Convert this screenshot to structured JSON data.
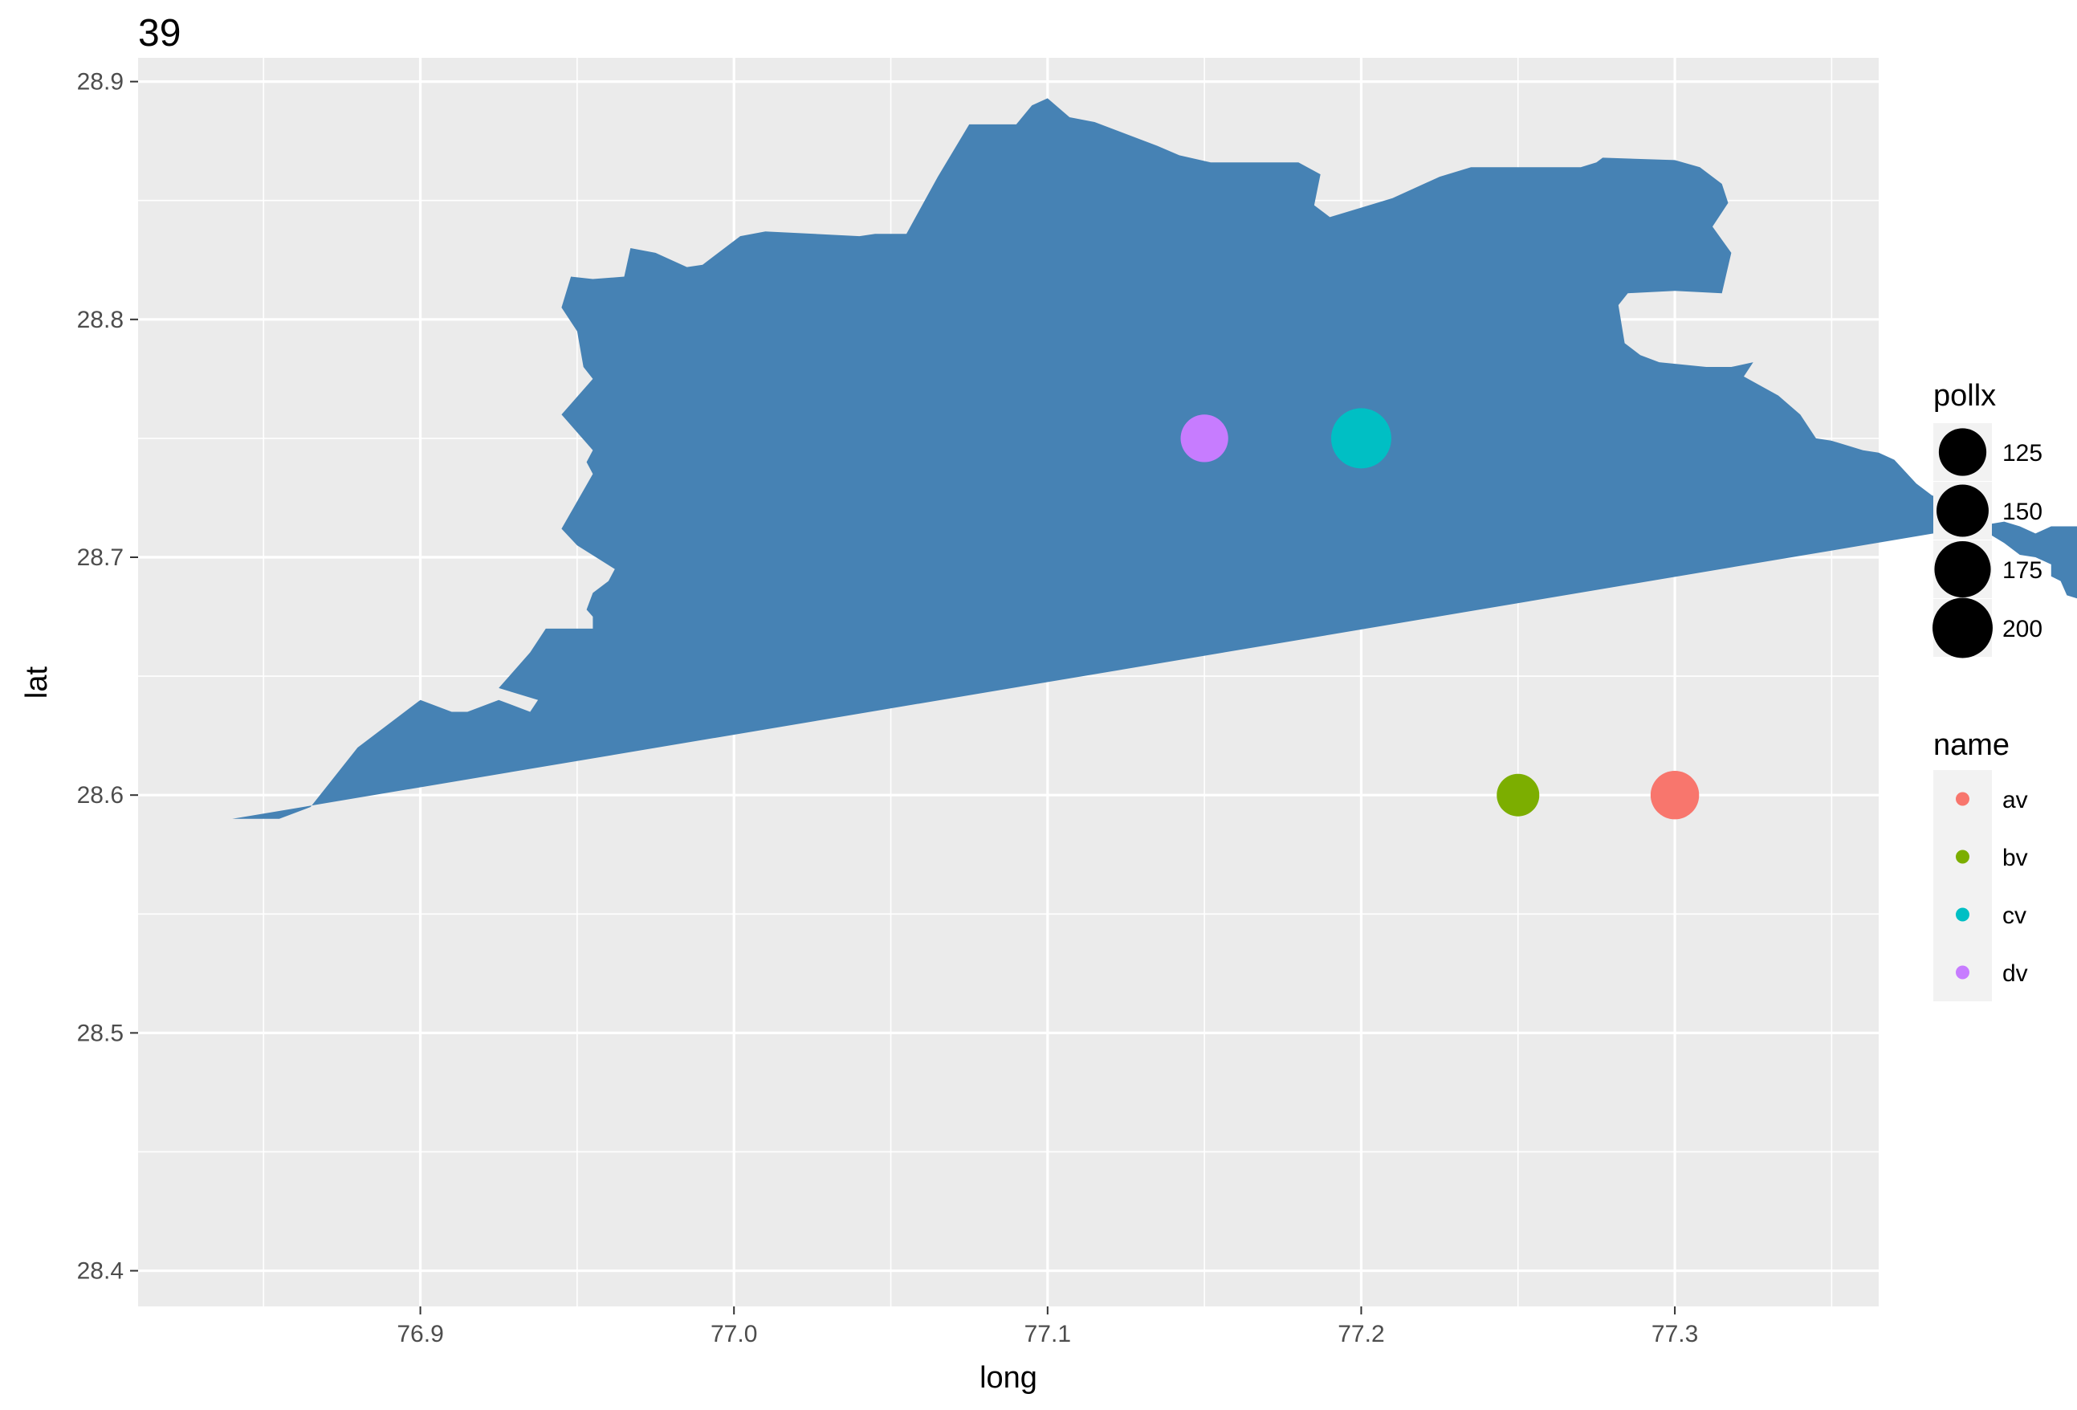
{
  "title": "39",
  "chart_data": {
    "type": "scatter",
    "title": "39",
    "xlabel": "long",
    "ylabel": "lat",
    "xlim": [
      76.81,
      77.365
    ],
    "ylim": [
      28.385,
      28.91
    ],
    "x_ticks": [
      76.9,
      77.0,
      77.1,
      77.2,
      77.3
    ],
    "x_tick_labels": [
      "76.9",
      "77.0",
      "77.1",
      "77.2",
      "77.3"
    ],
    "y_ticks": [
      28.4,
      28.5,
      28.6,
      28.7,
      28.8,
      28.9
    ],
    "y_tick_labels": [
      "28.4",
      "28.5",
      "28.6",
      "28.7",
      "28.8",
      "28.9"
    ],
    "grid": true,
    "region_fill": "#4682b4",
    "panel_background": "#ebebeb",
    "region_outline": [
      [
        76.84,
        28.59
      ],
      [
        76.855,
        28.59
      ],
      [
        76.865,
        28.595
      ],
      [
        76.88,
        28.62
      ],
      [
        76.9,
        28.64
      ],
      [
        76.91,
        28.635
      ],
      [
        76.915,
        28.635
      ],
      [
        76.925,
        28.64
      ],
      [
        76.935,
        28.635
      ],
      [
        76.9375,
        28.64
      ],
      [
        76.925,
        28.645
      ],
      [
        76.935,
        28.66
      ],
      [
        76.94,
        28.67
      ],
      [
        76.95,
        28.67
      ],
      [
        76.955,
        28.67
      ],
      [
        76.955,
        28.675
      ],
      [
        76.953,
        28.678
      ],
      [
        76.955,
        28.685
      ],
      [
        76.96,
        28.69
      ],
      [
        76.962,
        28.695
      ],
      [
        76.95,
        28.705
      ],
      [
        76.945,
        28.712
      ],
      [
        76.955,
        28.735
      ],
      [
        76.953,
        28.74
      ],
      [
        76.955,
        28.745
      ],
      [
        76.945,
        28.76
      ],
      [
        76.955,
        28.775
      ],
      [
        76.952,
        28.78
      ],
      [
        76.95,
        28.795
      ],
      [
        76.945,
        28.805
      ],
      [
        76.948,
        28.818
      ],
      [
        76.955,
        28.817
      ],
      [
        76.965,
        28.818
      ],
      [
        76.967,
        28.83
      ],
      [
        76.975,
        28.828
      ],
      [
        76.985,
        28.822
      ],
      [
        76.99,
        28.823
      ],
      [
        77.002,
        28.835
      ],
      [
        77.01,
        28.837
      ],
      [
        77.04,
        28.835
      ],
      [
        77.045,
        28.836
      ],
      [
        77.055,
        28.836
      ],
      [
        77.065,
        28.86
      ],
      [
        77.075,
        28.882
      ],
      [
        77.09,
        28.882
      ],
      [
        77.095,
        28.89
      ],
      [
        77.1,
        28.893
      ],
      [
        77.107,
        28.885
      ],
      [
        77.115,
        28.883
      ],
      [
        77.135,
        28.873
      ],
      [
        77.142,
        28.869
      ],
      [
        77.152,
        28.866
      ],
      [
        77.18,
        28.866
      ],
      [
        77.187,
        28.861
      ],
      [
        77.185,
        28.848
      ],
      [
        77.19,
        28.843
      ],
      [
        77.195,
        28.845
      ],
      [
        77.21,
        28.851
      ],
      [
        77.225,
        28.86
      ],
      [
        77.235,
        28.864
      ],
      [
        77.27,
        28.864
      ],
      [
        77.275,
        28.866
      ],
      [
        77.277,
        28.868
      ],
      [
        77.3,
        28.867
      ],
      [
        77.308,
        28.864
      ],
      [
        77.315,
        28.857
      ],
      [
        77.317,
        28.849
      ],
      [
        77.312,
        28.839
      ],
      [
        77.318,
        28.828
      ],
      [
        77.315,
        28.811
      ],
      [
        77.3,
        28.812
      ],
      [
        77.285,
        28.811
      ],
      [
        77.282,
        28.806
      ],
      [
        77.284,
        28.79
      ],
      [
        77.289,
        28.785
      ],
      [
        77.295,
        28.782
      ],
      [
        77.31,
        28.78
      ],
      [
        77.318,
        28.78
      ],
      [
        77.325,
        28.782
      ],
      [
        77.322,
        28.776
      ],
      [
        77.333,
        28.768
      ],
      [
        77.34,
        28.76
      ],
      [
        77.345,
        28.75
      ],
      [
        77.35,
        28.749
      ],
      [
        77.36,
        28.745
      ],
      [
        77.365,
        28.744
      ],
      [
        77.37,
        28.741
      ],
      [
        77.377,
        28.731
      ],
      [
        77.382,
        28.726
      ],
      [
        77.39,
        28.723
      ],
      [
        77.395,
        28.716
      ],
      [
        77.4,
        28.71
      ],
      [
        77.405,
        28.706
      ],
      [
        77.41,
        28.701
      ],
      [
        77.415,
        28.7
      ],
      [
        77.42,
        28.697
      ],
      [
        77.42,
        28.692
      ],
      [
        77.423,
        28.69
      ],
      [
        77.425,
        28.684
      ],
      [
        77.43,
        28.682
      ],
      [
        77.435,
        28.683
      ],
      [
        77.43,
        28.689
      ],
      [
        77.432,
        28.695
      ],
      [
        77.438,
        28.692
      ],
      [
        77.443,
        28.694
      ],
      [
        77.445,
        28.7
      ],
      [
        77.44,
        28.705
      ],
      [
        77.436,
        28.709
      ],
      [
        77.433,
        28.713
      ],
      [
        77.425,
        28.713
      ],
      [
        77.42,
        28.713
      ],
      [
        77.415,
        28.71
      ],
      [
        77.41,
        28.713
      ],
      [
        77.405,
        28.715
      ]
    ],
    "series": [
      {
        "name": "av",
        "x": [
          77.3
        ],
        "y": [
          28.6
        ],
        "pollx": [
          130
        ],
        "color": "#f8766d"
      },
      {
        "name": "bv",
        "x": [
          77.25
        ],
        "y": [
          28.6
        ],
        "pollx": [
          100
        ],
        "color": "#7cae00"
      },
      {
        "name": "cv",
        "x": [
          77.2
        ],
        "y": [
          28.75
        ],
        "pollx": [
          200
        ],
        "color": "#00bfc4"
      },
      {
        "name": "dv",
        "x": [
          77.15
        ],
        "y": [
          28.75
        ],
        "pollx": [
          125
        ],
        "color": "#c77cff"
      }
    ],
    "legends": {
      "size": {
        "title": "pollx",
        "entries": [
          "125",
          "150",
          "175",
          "200"
        ],
        "values": [
          125,
          150,
          175,
          200
        ]
      },
      "color": {
        "title": "name",
        "entries": [
          "av",
          "bv",
          "cv",
          "dv"
        ],
        "colors": [
          "#f8766d",
          "#7cae00",
          "#00bfc4",
          "#c77cff"
        ]
      }
    },
    "legend_position": "right"
  }
}
